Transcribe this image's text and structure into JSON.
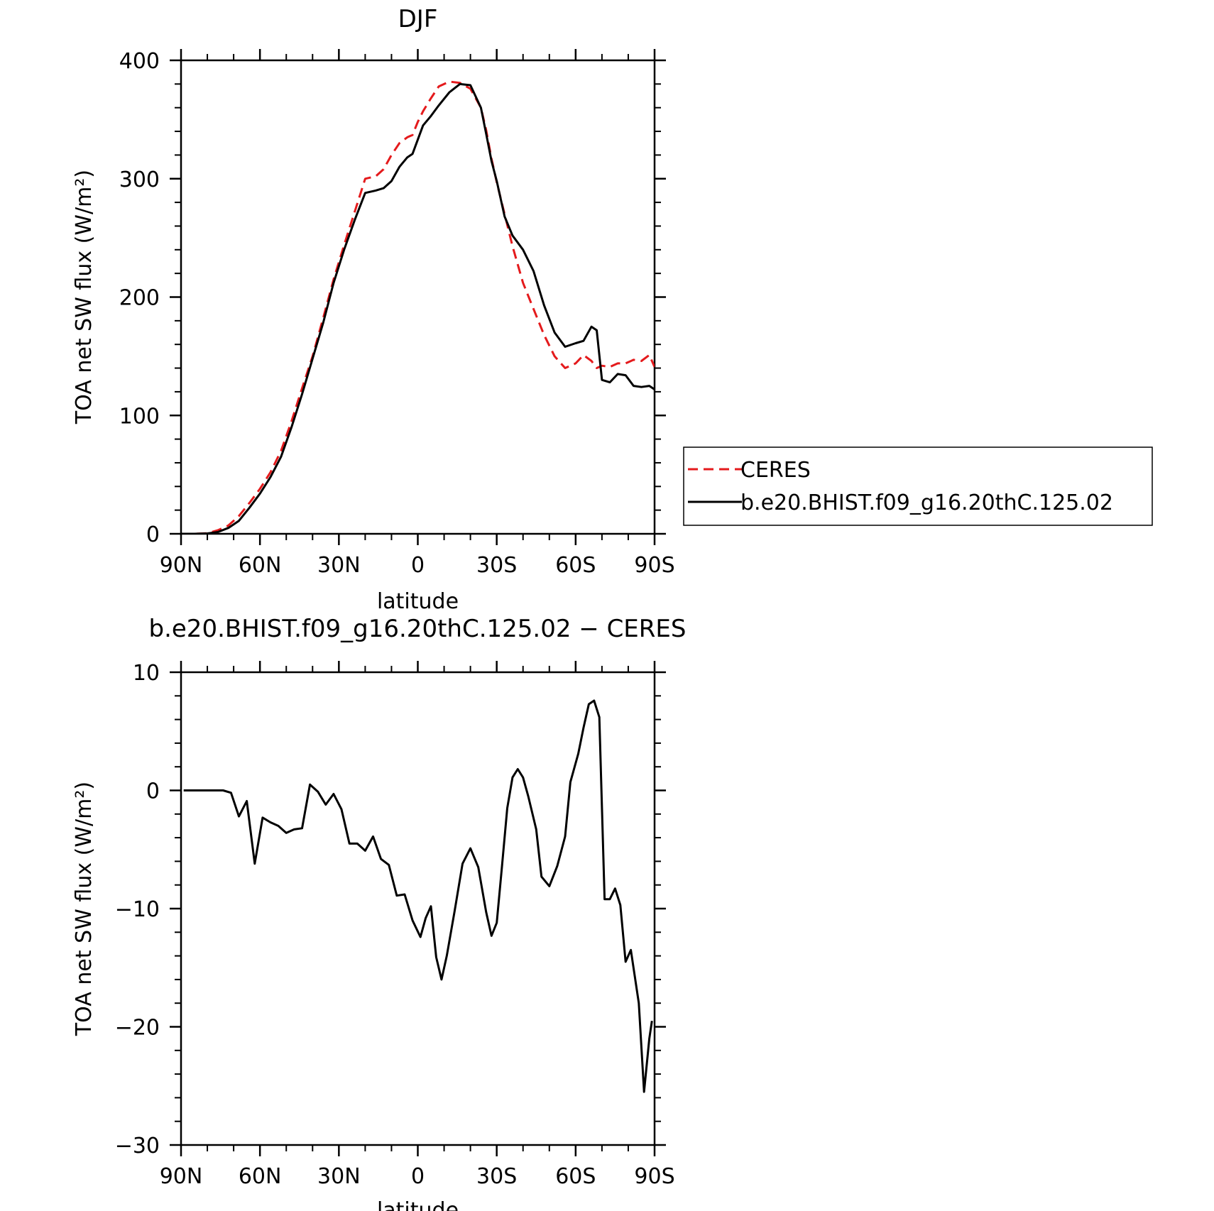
{
  "chart_data": [
    {
      "type": "line",
      "title": "DJF",
      "xlabel": "latitude",
      "ylabel": "TOA net SW flux (W/m²)",
      "xlim": [
        90,
        -90
      ],
      "ylim": [
        0,
        400
      ],
      "xticks": [
        90,
        60,
        30,
        0,
        -30,
        -60,
        -90
      ],
      "xtick_labels": [
        "90N",
        "60N",
        "30N",
        "0",
        "30S",
        "60S",
        "90S"
      ],
      "yticks": [
        0,
        100,
        200,
        300,
        400
      ],
      "ytick_labels": [
        "0",
        "100",
        "200",
        "300",
        "400"
      ],
      "grid": false,
      "legend_position": "right",
      "series": [
        {
          "name": "CERES",
          "color": "#e41a1c",
          "dash": "dashed",
          "x": [
            90,
            85,
            80,
            76,
            72,
            68,
            64,
            60,
            56,
            52,
            48,
            44,
            40,
            36,
            32,
            28,
            24,
            20,
            16,
            13,
            10,
            7,
            4,
            2,
            0,
            -2,
            -5,
            -8,
            -12,
            -16,
            -20,
            -24,
            -26,
            -28,
            -30,
            -33,
            -36,
            -40,
            -44,
            -48,
            -52,
            -56,
            -60,
            -63,
            -66,
            -68,
            -70,
            -73,
            -76,
            -79,
            -82,
            -85,
            -88,
            -90
          ],
          "y": [
            0,
            0,
            0.5,
            3,
            7,
            15,
            26,
            38,
            52,
            70,
            95,
            123,
            150,
            182,
            215,
            244,
            272,
            300,
            302,
            308,
            320,
            330,
            335,
            337,
            348,
            357,
            368,
            378,
            382,
            381,
            376,
            360,
            341,
            317,
            297,
            270,
            243,
            212,
            190,
            168,
            150,
            140,
            144,
            151,
            146,
            140,
            142,
            141,
            144,
            144,
            147,
            146,
            151,
            141
          ]
        },
        {
          "name": "b.e20.BHIST.f09_g16.20thC.125.02",
          "color": "#000000",
          "dash": "solid",
          "x": [
            90,
            85,
            80,
            76,
            72,
            68,
            64,
            60,
            56,
            52,
            48,
            44,
            40,
            36,
            32,
            28,
            24,
            20,
            16,
            13,
            10,
            7,
            4,
            2,
            0,
            -2,
            -5,
            -8,
            -12,
            -16,
            -20,
            -24,
            -26,
            -28,
            -30,
            -33,
            -36,
            -40,
            -44,
            -48,
            -52,
            -56,
            -60,
            -63,
            -66,
            -68,
            -70,
            -73,
            -76,
            -79,
            -82,
            -85,
            -88,
            -90
          ],
          "y": [
            0,
            0,
            0.3,
            1.5,
            5,
            11,
            22,
            34,
            48,
            65,
            90,
            118,
            148,
            178,
            212,
            240,
            265,
            288,
            290,
            292,
            298,
            310,
            318,
            321,
            333,
            345,
            353,
            362,
            373,
            380,
            379,
            360,
            338,
            315,
            298,
            268,
            252,
            240,
            222,
            193,
            170,
            158,
            161,
            163,
            175,
            172,
            130,
            128,
            135,
            134,
            125,
            124,
            125,
            122
          ]
        }
      ]
    },
    {
      "type": "line",
      "title": "b.e20.BHIST.f09_g16.20thC.125.02 − CERES",
      "xlabel": "latitude",
      "ylabel": "TOA net SW flux (W/m²)",
      "xlim": [
        90,
        -90
      ],
      "ylim": [
        -30,
        10
      ],
      "xticks": [
        90,
        60,
        30,
        0,
        -30,
        -60,
        -90
      ],
      "xtick_labels": [
        "90N",
        "60N",
        "30N",
        "0",
        "30S",
        "60S",
        "90S"
      ],
      "yticks": [
        -30,
        -20,
        -10,
        0,
        10
      ],
      "ytick_labels": [
        "−30",
        "−20",
        "−10",
        "0",
        "10"
      ],
      "grid": false,
      "series": [
        {
          "color": "#000000",
          "x": [
            89,
            86,
            83,
            80,
            77,
            74,
            71,
            68,
            65,
            62,
            59,
            56,
            53,
            50,
            47,
            44,
            41,
            38,
            35,
            32,
            29,
            26,
            23,
            20,
            17,
            14,
            11,
            8,
            5,
            2,
            -1,
            -3,
            -5,
            -7,
            -9,
            -11,
            -14,
            -17,
            -20,
            -23,
            -26,
            -28,
            -30,
            -32,
            -34,
            -36,
            -38,
            -40,
            -42,
            -45,
            -47,
            -50,
            -53,
            -56,
            -58,
            -61,
            -63,
            -65,
            -67,
            -69,
            -71,
            -73,
            -75,
            -77,
            -79,
            -81,
            -84,
            -86,
            -88,
            -89
          ],
          "y": [
            0,
            0,
            0,
            0,
            0,
            0,
            -0.2,
            -2.2,
            -0.9,
            -6.2,
            -2.3,
            -2.7,
            -3,
            -3.6,
            -3.3,
            -3.2,
            0.5,
            -0.1,
            -1.2,
            -0.3,
            -1.6,
            -4.5,
            -4.5,
            -5.1,
            -3.9,
            -5.8,
            -6.3,
            -8.9,
            -8.8,
            -11,
            -12.4,
            -10.8,
            -9.8,
            -14.1,
            -16,
            -14,
            -10.2,
            -6.2,
            -4.9,
            -6.5,
            -10.3,
            -12.3,
            -11.2,
            -6.4,
            -1.5,
            1.1,
            1.8,
            1.1,
            -0.5,
            -3.3,
            -7.3,
            -8.1,
            -6.4,
            -3.9,
            0.7,
            3.1,
            5.3,
            7.3,
            7.6,
            6.2,
            -9.2,
            -9.2,
            -8.3,
            -9.7,
            -14.5,
            -13.5,
            -18,
            -25.5,
            -21,
            -19.5
          ]
        }
      ]
    }
  ]
}
